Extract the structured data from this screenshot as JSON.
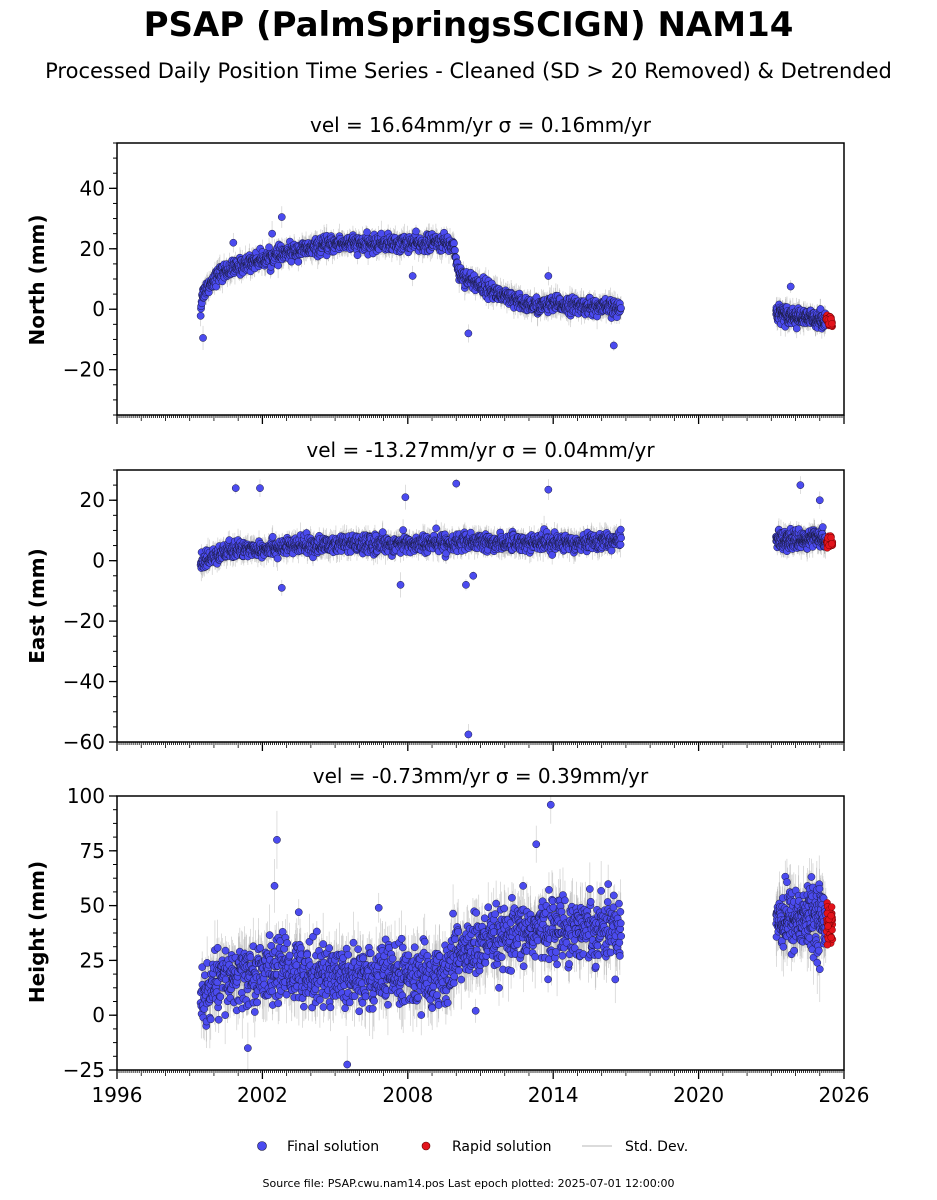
{
  "header": {
    "title": "PSAP (PalmSpringsSCIGN) NAM14",
    "subtitle": "Processed Daily Position Time Series - Cleaned (SD > 20 Removed) & Detrended"
  },
  "legend": {
    "final": "Final solution",
    "rapid": "Rapid solution",
    "stddev": "Std. Dev."
  },
  "footer": "Source file: PSAP.cwu.nam14.pos  Last epoch plotted: 2025-07-01 12:00:00",
  "colors": {
    "final": "#4b4bef",
    "rapid": "#e3141c",
    "errorbar": "#a8a8a8",
    "edge": "#1a1a40"
  },
  "chart_data": [
    {
      "type": "scatter",
      "name": "north",
      "title": "vel = 16.64mm/yr   σ = 0.16mm/yr",
      "ylabel": "North (mm)",
      "xlim": [
        1996,
        2026
      ],
      "ylim": [
        -35,
        55
      ],
      "yticks": [
        -20,
        0,
        20,
        40
      ],
      "ytick_labels": [
        "−20",
        "0",
        "20",
        "40"
      ],
      "show_xtick_labels": false,
      "series_final": {
        "x": [
          1999.45,
          1999.5,
          1999.6,
          1999.8,
          2000.0,
          2000.3,
          2000.6,
          2001.0,
          2001.5,
          2002.0,
          2002.5,
          2003.0,
          2003.5,
          2004.0,
          2004.5,
          2005.0,
          2005.5,
          2006.0,
          2006.5,
          2007.0,
          2007.5,
          2008.0,
          2008.5,
          2009.0,
          2009.5,
          2009.9,
          2010.1,
          2010.5,
          2011.0,
          2011.5,
          2012.0,
          2012.5,
          2013.0,
          2013.5,
          2014.0,
          2014.5,
          2015.0,
          2015.5,
          2016.0,
          2016.5,
          2016.8,
          2023.2,
          2023.6,
          2024.0,
          2024.4,
          2024.8,
          2025.2
        ],
        "y": [
          -1,
          4,
          6,
          8,
          10,
          12,
          13,
          14,
          15.5,
          16.5,
          17.5,
          18.5,
          19.5,
          20,
          21,
          21.5,
          22,
          21.5,
          21.5,
          22,
          21.5,
          22,
          21.5,
          22,
          22,
          21,
          12,
          10,
          8,
          6,
          4,
          2.5,
          1.5,
          1,
          1.5,
          1.5,
          1,
          1,
          0.5,
          0.5,
          0,
          -1,
          -1.5,
          -2.5,
          -3,
          -3,
          -3.5
        ]
      },
      "series_rapid": {
        "x": [
          2025.3,
          2025.35,
          2025.4,
          2025.45,
          2025.5
        ],
        "y": [
          -3.5,
          -4,
          -4.5,
          -3,
          -5
        ]
      },
      "outliers": {
        "x": [
          1999.55,
          2000.8,
          2002.4,
          2002.8,
          2008.2,
          2010.5,
          2013.8,
          2016.5,
          2023.8
        ],
        "y": [
          -9.5,
          22,
          25,
          30.5,
          11,
          -8,
          11,
          -12,
          7.5
        ]
      }
    },
    {
      "type": "scatter",
      "name": "east",
      "title": "vel = -13.27mm/yr   σ = 0.04mm/yr",
      "ylabel": "East (mm)",
      "xlim": [
        1996,
        2026
      ],
      "ylim": [
        -60,
        30
      ],
      "yticks": [
        -60,
        -40,
        -20,
        0,
        20
      ],
      "ytick_labels": [
        "−60",
        "−40",
        "−20",
        "0",
        "20"
      ],
      "show_xtick_labels": false,
      "series_final": {
        "x": [
          1999.45,
          1999.6,
          1999.8,
          2000.0,
          2000.5,
          2001.0,
          2001.5,
          2002.0,
          2002.5,
          2003.0,
          2003.5,
          2004.0,
          2004.5,
          2005.0,
          2005.5,
          2006.0,
          2006.5,
          2007.0,
          2007.5,
          2008.0,
          2008.5,
          2009.0,
          2009.5,
          2010.0,
          2010.5,
          2011.0,
          2011.5,
          2012.0,
          2012.5,
          2013.0,
          2013.5,
          2014.0,
          2014.5,
          2015.0,
          2015.5,
          2016.0,
          2016.5,
          2016.8,
          2023.2,
          2023.6,
          2024.0,
          2024.4,
          2024.8,
          2025.2
        ],
        "y": [
          -1,
          0,
          1,
          2,
          3,
          3.5,
          4,
          4,
          4.5,
          4.5,
          5,
          5,
          5,
          5.5,
          5.5,
          5.5,
          5.5,
          5.5,
          5.5,
          5.5,
          5.5,
          5.5,
          6,
          6,
          6,
          6,
          6,
          6,
          6,
          6,
          6,
          6,
          6,
          6,
          6.5,
          6.5,
          6.5,
          7,
          7,
          7,
          6.5,
          7,
          7.5,
          7
        ]
      },
      "series_rapid": {
        "x": [
          2025.3,
          2025.35,
          2025.4,
          2025.45,
          2025.5
        ],
        "y": [
          6,
          7,
          5,
          6.5,
          5.5
        ]
      },
      "outliers": {
        "x": [
          2000.9,
          2001.9,
          2002.8,
          2007.9,
          2007.7,
          2010.0,
          2010.4,
          2010.5,
          2010.7,
          2013.8,
          2024.2,
          2025.0
        ],
        "y": [
          24,
          24,
          -9,
          21,
          -8,
          25.5,
          -8,
          -57.5,
          -5,
          23.5,
          25,
          20
        ]
      }
    },
    {
      "type": "scatter",
      "name": "height",
      "title": "vel = -0.73mm/yr   σ = 0.39mm/yr",
      "ylabel": "Height (mm)",
      "xlim": [
        1996,
        2026
      ],
      "ylim": [
        -25,
        100
      ],
      "yticks": [
        -25,
        0,
        25,
        50,
        75,
        100
      ],
      "ytick_labels": [
        "−25",
        "0",
        "25",
        "50",
        "75",
        "100"
      ],
      "show_xtick_labels": true,
      "xticks": [
        1996,
        2002,
        2008,
        2014,
        2020,
        2026
      ],
      "xtick_labels": [
        "1996",
        "2002",
        "2008",
        "2014",
        "2020",
        "2026"
      ],
      "series_final": {
        "x": [
          1999.45,
          1999.7,
          2000.0,
          2000.5,
          2001.0,
          2001.5,
          2002.0,
          2002.5,
          2003.0,
          2003.5,
          2004.0,
          2004.5,
          2005.0,
          2005.5,
          2006.0,
          2006.5,
          2007.0,
          2007.5,
          2008.0,
          2008.5,
          2009.0,
          2009.5,
          2010.0,
          2010.5,
          2011.0,
          2011.5,
          2012.0,
          2012.5,
          2013.0,
          2013.5,
          2014.0,
          2014.5,
          2015.0,
          2015.5,
          2016.0,
          2016.5,
          2016.8,
          2023.2,
          2023.6,
          2024.0,
          2024.4,
          2024.8,
          2025.2
        ],
        "y": [
          5,
          10,
          14,
          16,
          17,
          18,
          19,
          20,
          21,
          20,
          20,
          19,
          18,
          18,
          18,
          18,
          18,
          18,
          18,
          17,
          17,
          17,
          28,
          30,
          31,
          33,
          34,
          36,
          38,
          39,
          40,
          40,
          40,
          40,
          40,
          40,
          40,
          45,
          44,
          44,
          44,
          45,
          45
        ]
      },
      "series_rapid": {
        "x": [
          2025.3,
          2025.35,
          2025.4,
          2025.45,
          2025.5
        ],
        "y": [
          45,
          40,
          42,
          38,
          44
        ]
      },
      "outliers": {
        "x": [
          2002.6,
          2002.5,
          2001.4,
          2005.5,
          2013.3,
          2013.9,
          2010.8,
          2025.0,
          2003.5,
          2006.8
        ],
        "y": [
          80,
          59,
          -15,
          -22.5,
          78,
          96,
          2,
          21,
          47,
          49
        ]
      }
    }
  ]
}
